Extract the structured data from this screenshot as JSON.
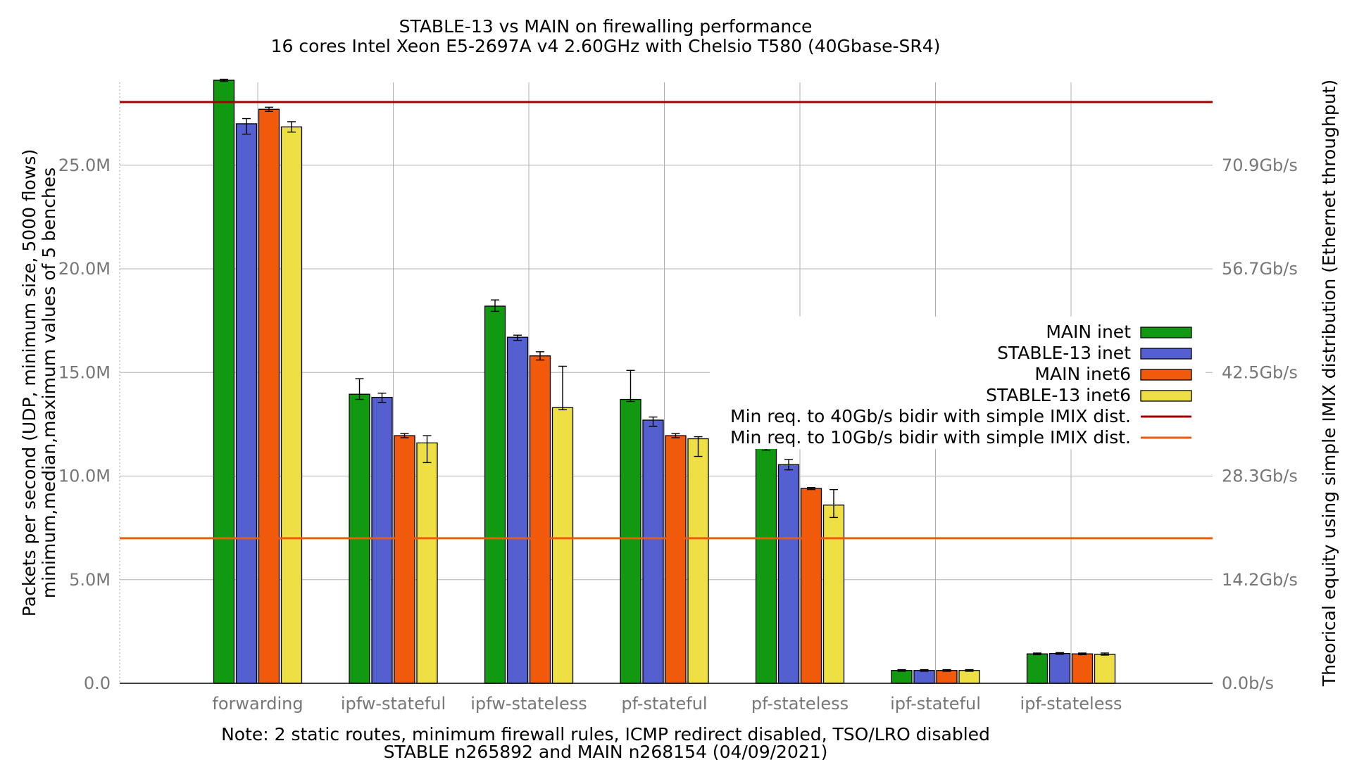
{
  "chart_data": {
    "type": "bar",
    "title": "STABLE-13 vs MAIN on firewalling performance",
    "subtitle": "16 cores Intel Xeon E5-2697A v4 2.60GHz with Chelsio T580 (40Gbase-SR4)",
    "ylabel_line1": "Packets per second (UDP, minimum size, 5000 flows)",
    "ylabel_line2": "minimum,median,maximum values of 5 benches",
    "y2label": "Theorical equity using simple IMIX distribution (Ethernet throughput)",
    "note_line1": "Note: 2 static routes, minimum firewall rules, ICMP redirect disabled, TSO/LRO disabled",
    "note_line2": "STABLE n265892 and MAIN n268154 (04/09/2021)",
    "ylim": [
      0,
      29.0
    ],
    "grid": true,
    "legend_position": "right",
    "yticks": [
      {
        "value": 0,
        "label": "0.0"
      },
      {
        "value": 5,
        "label": "5.0M"
      },
      {
        "value": 10,
        "label": "10.0M"
      },
      {
        "value": 15,
        "label": "15.0M"
      },
      {
        "value": 20,
        "label": "20.0M"
      },
      {
        "value": 25,
        "label": "25.0M"
      }
    ],
    "y2ticks": [
      {
        "value": 0,
        "label": "0.0b/s"
      },
      {
        "value": 5,
        "label": "14.2Gb/s"
      },
      {
        "value": 10,
        "label": "28.3Gb/s"
      },
      {
        "value": 15,
        "label": "42.5Gb/s"
      },
      {
        "value": 20,
        "label": "56.7Gb/s"
      },
      {
        "value": 25,
        "label": "70.9Gb/s"
      }
    ],
    "categories": [
      "forwarding",
      "ipfw-stateful",
      "ipfw-stateless",
      "pf-stateful",
      "pf-stateless",
      "ipf-stateful",
      "ipf-stateless"
    ],
    "series": [
      {
        "name": "MAIN inet",
        "color": "#119911",
        "values": [
          29.1,
          13.95,
          18.2,
          13.7,
          11.4,
          0.62,
          1.42
        ],
        "min": [
          29.05,
          13.7,
          17.95,
          13.6,
          11.25,
          0.58,
          1.38
        ],
        "max": [
          29.15,
          14.7,
          18.5,
          15.1,
          11.55,
          0.66,
          1.46
        ]
      },
      {
        "name": "STABLE-13 inet",
        "color": "#5560d0",
        "values": [
          27.0,
          13.8,
          16.7,
          12.7,
          10.55,
          0.62,
          1.44
        ],
        "min": [
          26.5,
          13.55,
          16.55,
          12.4,
          10.3,
          0.58,
          1.4
        ],
        "max": [
          27.25,
          14.0,
          16.8,
          12.85,
          10.8,
          0.66,
          1.48
        ]
      },
      {
        "name": "MAIN inet6",
        "color": "#f05a0a",
        "values": [
          27.7,
          11.95,
          15.8,
          11.95,
          9.4,
          0.62,
          1.42
        ],
        "min": [
          27.6,
          11.85,
          15.6,
          11.85,
          9.35,
          0.58,
          1.38
        ],
        "max": [
          27.8,
          12.05,
          16.0,
          12.05,
          9.45,
          0.66,
          1.46
        ]
      },
      {
        "name": "STABLE-13 inet6",
        "color": "#eee044",
        "values": [
          26.85,
          11.6,
          13.3,
          11.8,
          8.6,
          0.62,
          1.4
        ],
        "min": [
          26.6,
          10.65,
          13.2,
          10.95,
          8.0,
          0.58,
          1.36
        ],
        "max": [
          27.1,
          11.95,
          15.3,
          11.9,
          9.35,
          0.66,
          1.46
        ]
      }
    ],
    "reference_lines": [
      {
        "name": "Min req. to 40Gb/s bidir with simple IMIX dist.",
        "value": 28.05,
        "color": "#a00000"
      },
      {
        "name": "Min req. to 10Gb/s bidir with simple IMIX dist.",
        "value": 7.0,
        "color": "#f05a0a"
      }
    ]
  }
}
